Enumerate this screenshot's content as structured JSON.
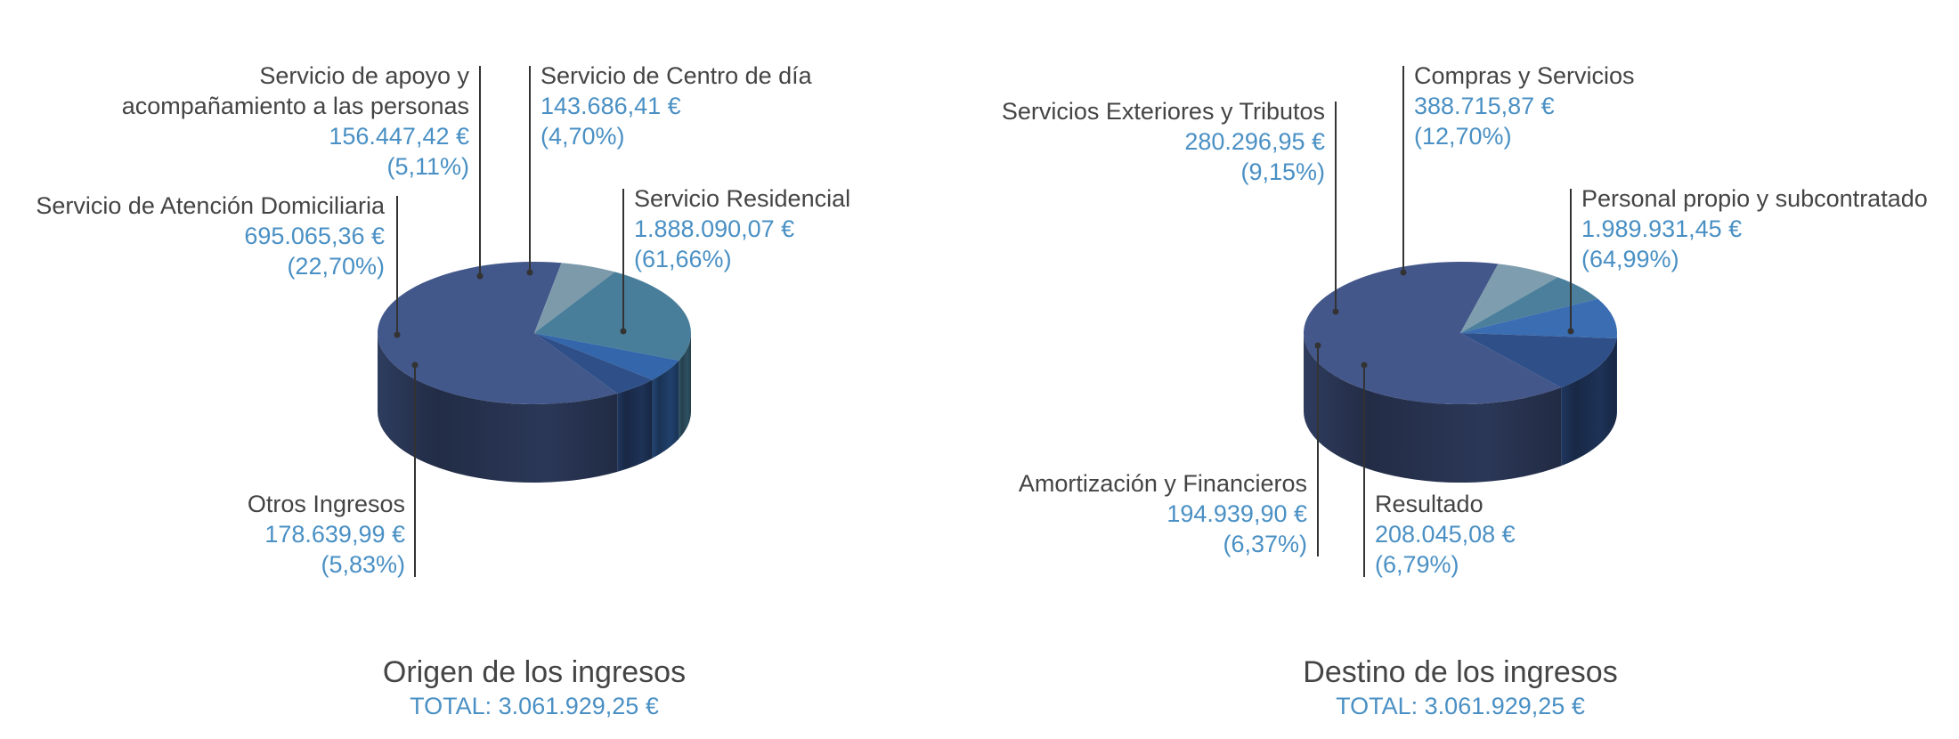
{
  "chart_data": [
    {
      "type": "pie",
      "title": "Origen de los ingresos",
      "subtitle": "TOTAL: 3.061.929,25 €",
      "slices": [
        {
          "name": "Servicio Residencial",
          "value_label": "1.888.090,07 €",
          "pct_label": "(61,66%)",
          "value": 1888090.07,
          "percent": 61.66
        },
        {
          "name": "Otros Ingresos",
          "value_label": "178.639,99 €",
          "pct_label": "(5,83%)",
          "value": 178639.99,
          "percent": 5.83
        },
        {
          "name": "Servicio de Atención Domiciliaria",
          "value_label": "695.065,36 €",
          "pct_label": "(22,70%)",
          "value": 695065.36,
          "percent": 22.7
        },
        {
          "name": "Servicio de apoyo y acompañamiento a las personas",
          "name_lines": [
            "Servicio de apoyo y",
            "acompañamiento a las personas"
          ],
          "value_label": "156.447,42 €",
          "pct_label": "(5,11%)",
          "value": 156447.42,
          "percent": 5.11
        },
        {
          "name": "Servicio de Centro de día",
          "value_label": "143.686,41 €",
          "pct_label": "(4,70%)",
          "value": 143686.41,
          "percent": 4.7
        }
      ]
    },
    {
      "type": "pie",
      "title": "Destino de los ingresos",
      "subtitle": "TOTAL: 3.061.929,25 €",
      "slices": [
        {
          "name": "Personal propio y subcontratado",
          "value_label": "1.989.931,45 €",
          "pct_label": "(64,99%)",
          "value": 1989931.45,
          "percent": 64.99
        },
        {
          "name": "Resultado",
          "value_label": "208.045,08 €",
          "pct_label": "(6,79%)",
          "value": 208045.08,
          "percent": 6.79
        },
        {
          "name": "Amortización y Financieros",
          "value_label": "194.939,90 €",
          "pct_label": "(6,37%)",
          "value": 194939.9,
          "percent": 6.37
        },
        {
          "name": "Servicios Exteriores y Tributos",
          "value_label": "280.296,95 €",
          "pct_label": "(9,15%)",
          "value": 280296.95,
          "percent": 9.15
        },
        {
          "name": "Compras y Servicios",
          "value_label": "388.715,87 €",
          "pct_label": "(12,70%)",
          "value": 388715.87,
          "percent": 12.7
        }
      ]
    }
  ]
}
